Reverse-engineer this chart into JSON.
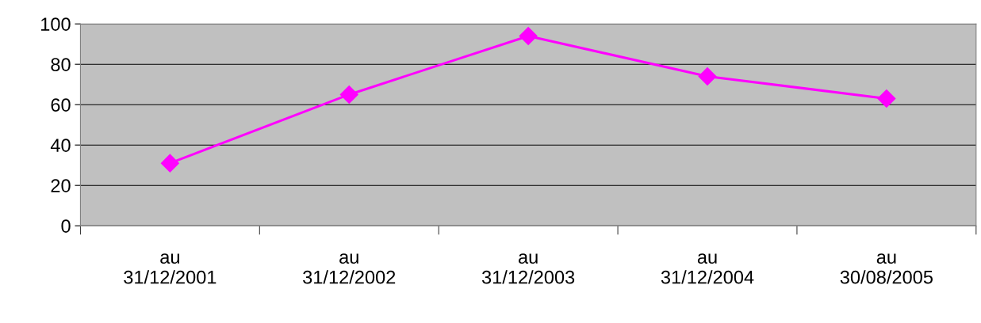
{
  "chart_data": {
    "type": "line",
    "categories": [
      "au\n31/12/2001",
      "au\n31/12/2002",
      "au\n31/12/2003",
      "au\n31/12/2004",
      "au\n30/08/2005"
    ],
    "series": [
      {
        "color": "#ff00ff",
        "values": [
          31,
          65,
          94,
          74,
          63
        ]
      }
    ],
    "ylim": [
      0,
      100
    ],
    "yticks": [
      0,
      20,
      40,
      60,
      80,
      100
    ],
    "grid": "y",
    "marker": "diamond",
    "line_style": "solid",
    "legend": false
  }
}
